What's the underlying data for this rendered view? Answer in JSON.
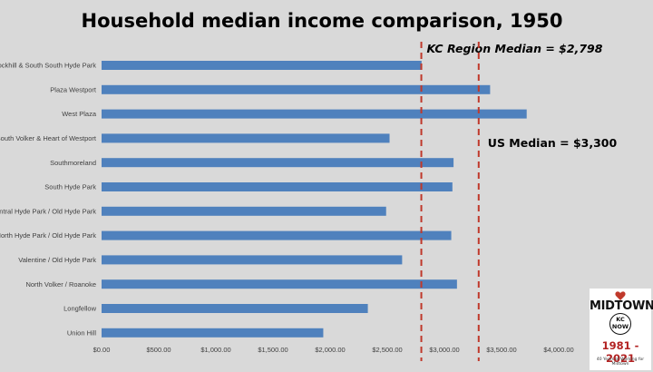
{
  "chart_data": {
    "type": "bar",
    "orientation": "horizontal",
    "title": "Household median income comparison, 1950",
    "categories": [
      "Rockhill & South South Hyde Park",
      "Plaza Westport",
      "West Plaza",
      "South Volker & Heart of Westport",
      "Southmoreland",
      "South Hyde Park",
      "Central Hyde Park / Old Hyde Park",
      "North Hyde Park / Old Hyde Park",
      "Valentine / Old Hyde Park",
      "North Volker / Roanoke",
      "Longfellow",
      "Union Hill"
    ],
    "values": [
      2800,
      3400,
      3720,
      2520,
      3080,
      3070,
      2490,
      3060,
      2630,
      3110,
      2330,
      1940
    ],
    "xlim": [
      0,
      4000
    ],
    "x_ticks": [
      0,
      500,
      1000,
      1500,
      2000,
      2500,
      3000,
      3500,
      4000
    ],
    "x_tick_labels": [
      "$0.00",
      "$500.00",
      "$1,000.00",
      "$1,500.00",
      "$2,000.00",
      "$2,500.00",
      "$3,000.00",
      "$3,500.00",
      "$4,000.00"
    ],
    "reference_lines": [
      {
        "label": "KC Region Median = $2,798",
        "value": 2798
      },
      {
        "label": "US Median = $3,300",
        "value": 3300
      }
    ],
    "bar_color": "#4f81bd",
    "reference_line_color": "#c0392b",
    "grid": false,
    "legend": "none"
  },
  "logo": {
    "brand": "MIDTOWN",
    "sub1": "KC",
    "sub2": "NOW",
    "years": "1981 - 2021",
    "tagline": "40 Years of Working for Midtown",
    "heart_color": "#c0392b"
  }
}
